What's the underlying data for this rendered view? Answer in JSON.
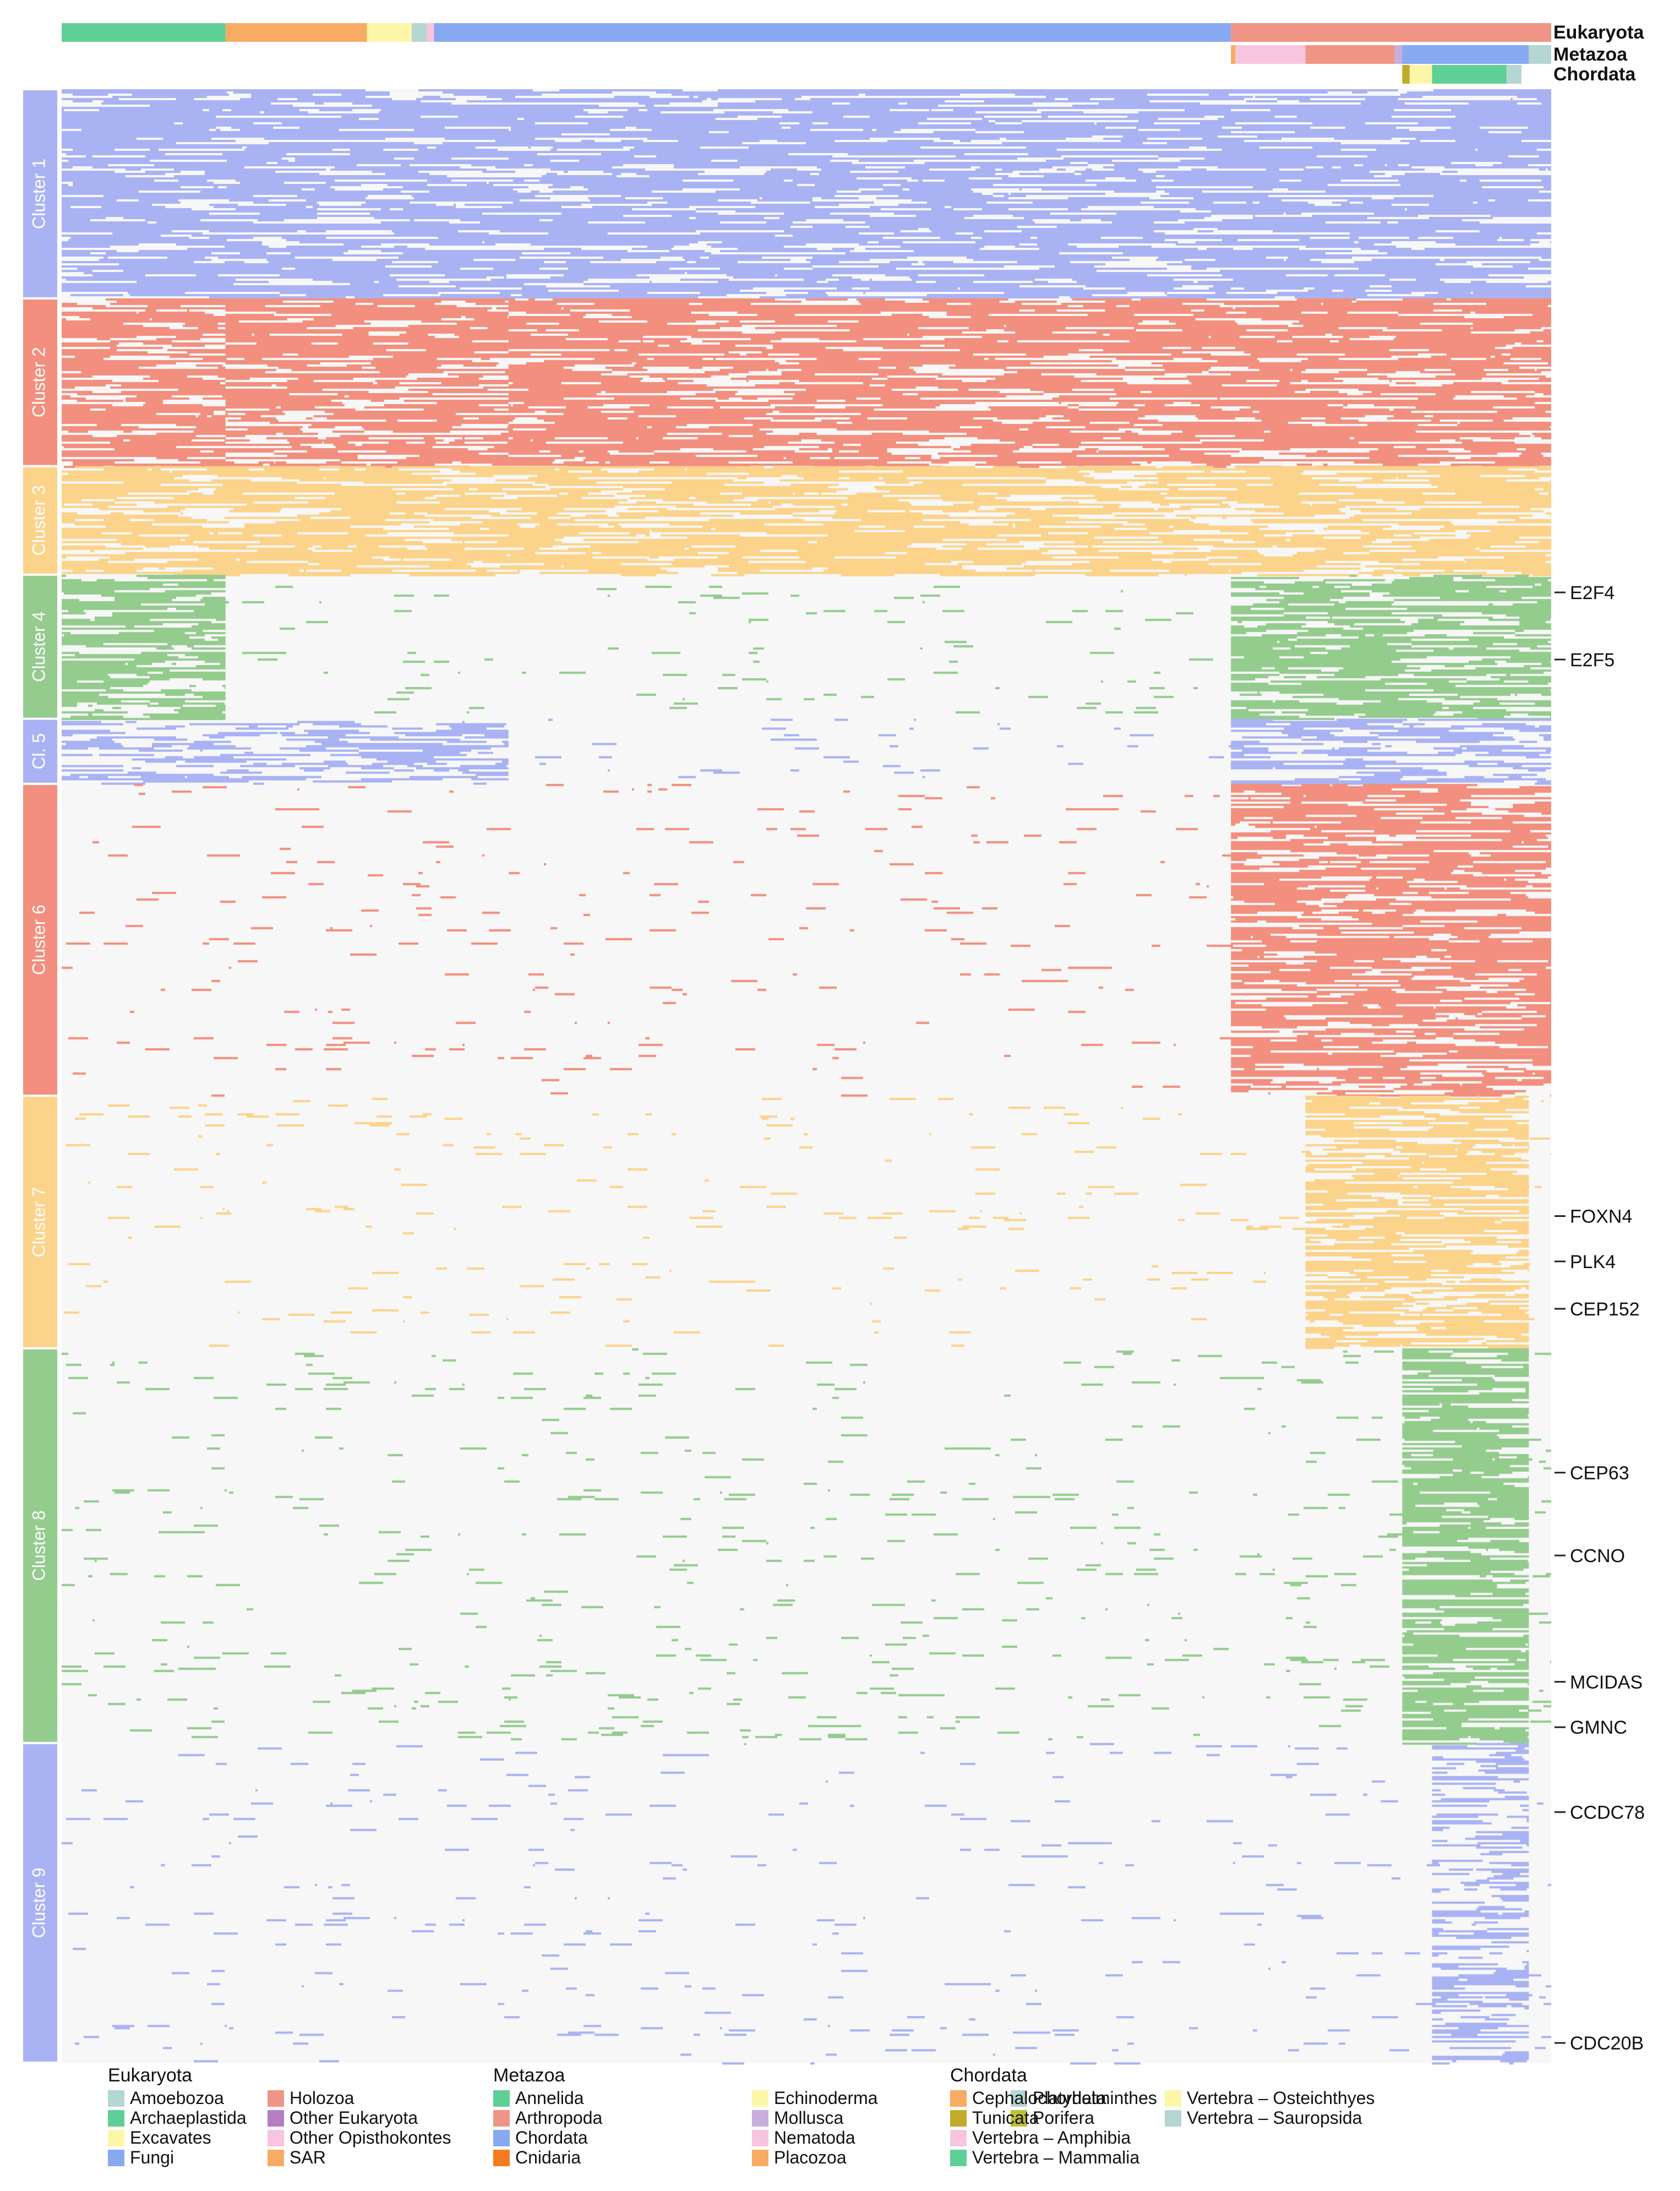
{
  "chart_data": {
    "type": "heatmap",
    "title": "",
    "description_note": "Phylogenetic profile heatmap: rows = genes grouped in 9 clusters, columns = species grouped by taxonomy (top annotation bars)",
    "annotation_tracks": [
      {
        "name": "Eukaryota",
        "segments": [
          {
            "group": "Archaeplastida",
            "start": 0.0,
            "end": 0.11
          },
          {
            "group": "SAR",
            "start": 0.11,
            "end": 0.205
          },
          {
            "group": "Excavates",
            "start": 0.205,
            "end": 0.235
          },
          {
            "group": "Amoebozoa",
            "start": 0.235,
            "end": 0.245
          },
          {
            "group": "Other Opisthokontes",
            "start": 0.245,
            "end": 0.25
          },
          {
            "group": "Fungi",
            "start": 0.25,
            "end": 0.785
          },
          {
            "group": "Holozoa",
            "start": 0.785,
            "end": 1.0
          }
        ]
      },
      {
        "name": "Metazoa",
        "segments": [
          {
            "group": "Placozoa",
            "start": 0.785,
            "end": 0.788
          },
          {
            "group": "Nematoda",
            "start": 0.788,
            "end": 0.835
          },
          {
            "group": "Arthropoda",
            "start": 0.835,
            "end": 0.895
          },
          {
            "group": "Mollusca",
            "start": 0.895,
            "end": 0.9
          },
          {
            "group": "Chordata",
            "start": 0.9,
            "end": 0.985
          },
          {
            "group": "Platyhelminthes",
            "start": 0.985,
            "end": 1.0
          }
        ]
      },
      {
        "name": "Chordata",
        "segments": [
          {
            "group": "Tunicata",
            "start": 0.9,
            "end": 0.905
          },
          {
            "group": "Vertebra – Osteichthyes",
            "start": 0.905,
            "end": 0.92
          },
          {
            "group": "Vertebra – Mammalia",
            "start": 0.92,
            "end": 0.97
          },
          {
            "group": "Vertebra – Sauropsida",
            "start": 0.97,
            "end": 0.98
          }
        ]
      }
    ],
    "clusters": [
      {
        "label": "Cluster 1",
        "color": "#a9b3f4",
        "row_start": 0.0,
        "row_end": 0.106,
        "present_in": [
          [
            0.0,
            1.0
          ]
        ],
        "density": 0.92
      },
      {
        "label": "Cluster 2",
        "color": "#f28f7e",
        "row_start": 0.106,
        "row_end": 0.191,
        "present_in": [
          [
            0.0,
            0.11
          ],
          [
            0.11,
            0.3
          ],
          [
            0.3,
            1.0
          ]
        ],
        "density": 0.85
      },
      {
        "label": "Cluster 3",
        "color": "#fbd38a",
        "row_start": 0.191,
        "row_end": 0.246,
        "present_in": [
          [
            0.0,
            1.0
          ]
        ],
        "density": 0.88
      },
      {
        "label": "Cluster 4",
        "color": "#94cc8e",
        "row_start": 0.246,
        "row_end": 0.319,
        "present_in": [
          [
            0.0,
            0.11
          ],
          [
            0.785,
            1.0
          ]
        ],
        "density": 0.8
      },
      {
        "label": "Cl. 5",
        "color": "#a9b3f4",
        "row_start": 0.319,
        "row_end": 0.352,
        "present_in": [
          [
            0.0,
            0.3
          ],
          [
            0.785,
            1.0
          ]
        ],
        "density": 0.55
      },
      {
        "label": "Cluster 6",
        "color": "#f28f7e",
        "row_start": 0.352,
        "row_end": 0.51,
        "present_in": [
          [
            0.785,
            1.0
          ]
        ],
        "density": 0.85
      },
      {
        "label": "Cluster 7",
        "color": "#fbd38a",
        "row_start": 0.51,
        "row_end": 0.638,
        "present_in": [
          [
            0.835,
            0.985
          ]
        ],
        "density": 0.8
      },
      {
        "label": "Cluster 8",
        "color": "#94cc8e",
        "row_start": 0.638,
        "row_end": 0.838,
        "present_in": [
          [
            0.9,
            0.985
          ]
        ],
        "density": 0.85
      },
      {
        "label": "Cluster 9",
        "color": "#a9b3f4",
        "row_start": 0.838,
        "row_end": 1.0,
        "present_in": [
          [
            0.92,
            0.985
          ]
        ],
        "density": 0.55
      }
    ],
    "gene_labels": [
      {
        "gene": "E2F4",
        "row_frac": 0.255
      },
      {
        "gene": "E2F5",
        "row_frac": 0.289
      },
      {
        "gene": "FOXN4",
        "row_frac": 0.571
      },
      {
        "gene": "PLK4",
        "row_frac": 0.594
      },
      {
        "gene": "CEP152",
        "row_frac": 0.618
      },
      {
        "gene": "CEP63",
        "row_frac": 0.701
      },
      {
        "gene": "CCNO",
        "row_frac": 0.743
      },
      {
        "gene": "MCIDAS",
        "row_frac": 0.807
      },
      {
        "gene": "GMNC",
        "row_frac": 0.83
      },
      {
        "gene": "CCDC78",
        "row_frac": 0.873
      },
      {
        "gene": "CDC20B",
        "row_frac": 0.99
      }
    ],
    "legend_groups": [
      {
        "title": "Eukaryota",
        "items": [
          {
            "label": "Amoebozoa",
            "color": "#b5d6d3"
          },
          {
            "label": "Archaeplastida",
            "color": "#5fd095"
          },
          {
            "label": "Excavates",
            "color": "#fcf7a8"
          },
          {
            "label": "Fungi",
            "color": "#86a9f2"
          },
          {
            "label": "Holozoa",
            "color": "#ef9585"
          },
          {
            "label": "Other Eukaryota",
            "color": "#b77dc3"
          },
          {
            "label": "Other Opisthokontes",
            "color": "#f7c5de"
          },
          {
            "label": "SAR",
            "color": "#f8ab62"
          }
        ]
      },
      {
        "title": "Metazoa",
        "items": [
          {
            "label": "Annelida",
            "color": "#5fd095"
          },
          {
            "label": "Arthropoda",
            "color": "#ef9585"
          },
          {
            "label": "Chordata",
            "color": "#86a9f2"
          },
          {
            "label": "Cnidaria",
            "color": "#f47b20"
          },
          {
            "label": "Echinoderma",
            "color": "#fcf7a8"
          },
          {
            "label": "Mollusca",
            "color": "#c7aedd"
          },
          {
            "label": "Nematoda",
            "color": "#f7c5de"
          },
          {
            "label": "Placozoa",
            "color": "#f8ab62"
          },
          {
            "label": "Platyhelminthes",
            "color": "#b5d6d3"
          },
          {
            "label": "Porifera",
            "color": "#bcbf3a"
          }
        ]
      },
      {
        "title": "Chordata",
        "items": [
          {
            "label": "Cephalochordata",
            "color": "#f8ab62"
          },
          {
            "label": "Tunicata",
            "color": "#c2ab2a"
          },
          {
            "label": "Vertebra – Amphibia",
            "color": "#f7c5de"
          },
          {
            "label": "Vertebra – Mammalia",
            "color": "#5fd095"
          },
          {
            "label": "Vertebra – Osteichthyes",
            "color": "#fcf7a8"
          },
          {
            "label": "Vertebra – Sauropsida",
            "color": "#b5d6d3"
          }
        ]
      }
    ]
  },
  "colors": {
    "background_cell": "#f7f7f7",
    "blue": "#a9b3f4",
    "salmon": "#f28f7e",
    "yellow": "#fbd38a",
    "green": "#94cc8e"
  }
}
